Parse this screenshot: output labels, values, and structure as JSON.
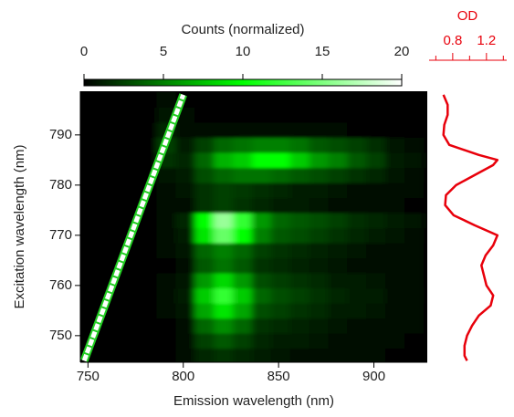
{
  "chart_data": [
    {
      "type": "heatmap",
      "xlabel": "Emission wavelength (nm)",
      "ylabel": "Excitation wavelength (nm)",
      "xlim": [
        746,
        928
      ],
      "ylim": [
        744.7,
        798.7
      ],
      "xticks": [
        750,
        800,
        850,
        900
      ],
      "yticks": [
        750,
        760,
        770,
        780,
        790
      ],
      "x": [
        751,
        761,
        771,
        781,
        791,
        801,
        811,
        821,
        831,
        841,
        851,
        861,
        871,
        881,
        891,
        901,
        911,
        921
      ],
      "y": [
        746,
        749,
        752,
        755,
        758,
        761,
        764,
        767,
        770,
        773,
        776,
        779,
        782,
        785,
        788,
        791,
        794,
        797
      ],
      "z": [
        [
          0,
          0,
          0,
          0,
          0,
          0.3,
          1.5,
          2,
          1.5,
          1,
          0.8,
          0.6,
          0.5,
          0.4,
          0.3,
          0.3,
          0.2,
          0.2
        ],
        [
          0,
          0,
          0,
          0,
          0,
          0.4,
          2.5,
          3.5,
          2.5,
          1.5,
          1.2,
          1,
          0.8,
          0.6,
          0.5,
          0.4,
          0.3,
          0.2
        ],
        [
          0,
          0,
          0,
          0,
          0.2,
          0.5,
          4,
          5.5,
          4,
          2,
          1.6,
          1.3,
          1,
          0.8,
          0.6,
          0.5,
          0.3,
          0.3
        ],
        [
          0,
          0,
          0,
          0,
          0.3,
          0.8,
          6.5,
          9,
          6.5,
          3,
          2.5,
          2,
          1.6,
          1.2,
          1,
          0.8,
          0.5,
          0.4
        ],
        [
          0,
          0,
          0,
          0,
          0.3,
          1,
          8,
          12,
          8,
          4,
          3,
          2.5,
          2,
          1.5,
          1.2,
          1,
          0.6,
          0.5
        ],
        [
          0,
          0,
          0,
          0,
          0.3,
          0.8,
          6,
          8.5,
          6,
          3,
          2.4,
          2,
          1.6,
          1.2,
          1,
          0.8,
          0.5,
          0.4
        ],
        [
          0,
          0,
          0,
          0,
          0.2,
          0.6,
          3.5,
          4.5,
          3.5,
          2,
          1.6,
          1.3,
          1,
          0.8,
          0.6,
          0.5,
          0.3,
          0.3
        ],
        [
          0,
          0,
          0,
          0,
          0.3,
          0.8,
          4,
          5,
          4,
          2.5,
          2,
          1.6,
          1.3,
          1,
          0.8,
          0.6,
          0.4,
          0.3
        ],
        [
          0,
          0,
          0,
          0.2,
          0.4,
          1.2,
          9,
          14,
          10,
          5,
          3.5,
          3,
          2.5,
          2,
          1.5,
          1.2,
          0.8,
          0.6
        ],
        [
          0,
          0,
          0,
          0.2,
          0.5,
          1.5,
          10,
          16,
          12,
          6,
          4,
          3.5,
          3,
          2.5,
          1.8,
          1.5,
          1,
          0.8
        ],
        [
          0,
          0,
          0,
          0,
          0.3,
          0.6,
          2,
          2.5,
          2,
          1.5,
          1.2,
          1,
          0.8,
          0.6,
          0.5,
          0.4,
          0.3,
          0.2
        ],
        [
          0,
          0,
          0,
          0,
          0.4,
          0.7,
          2,
          2.5,
          2.2,
          1.8,
          1.5,
          1.2,
          1,
          0.8,
          0.6,
          0.5,
          0.3,
          0.3
        ],
        [
          0,
          0,
          0,
          0,
          0.8,
          1,
          3,
          4,
          4.5,
          4.5,
          4,
          3.5,
          3,
          2.5,
          2,
          1.5,
          0.8,
          0.6
        ],
        [
          0,
          0,
          0,
          0,
          2,
          1.5,
          4,
          7,
          8,
          10,
          10,
          8,
          6,
          5,
          3.5,
          2.5,
          1,
          0.8
        ],
        [
          0,
          0,
          0,
          0,
          2.5,
          1,
          2.5,
          4,
          4.5,
          5,
          5,
          4.5,
          3.5,
          3,
          2.5,
          1.8,
          0.8,
          0.6
        ],
        [
          0,
          0,
          0,
          0,
          1.5,
          0.5,
          0.3,
          0.4,
          0.4,
          0.4,
          0.4,
          0.3,
          0.3,
          0.3,
          0.2,
          0.2,
          0.2,
          0.2
        ],
        [
          0,
          0,
          0,
          0,
          0.8,
          0.3,
          0.2,
          0.2,
          0.2,
          0.2,
          0.2,
          0.2,
          0.2,
          0.2,
          0.2,
          0.1,
          0.1,
          0.1
        ],
        [
          0,
          0,
          0,
          0,
          0.5,
          0.2,
          0.1,
          0.1,
          0.1,
          0.1,
          0.1,
          0.1,
          0.1,
          0.1,
          0.1,
          0.1,
          0.1,
          0.1
        ]
      ],
      "series": [
        {
          "color": "#ffffff",
          "x": [
            748,
            800
          ],
          "y": [
            745,
            798
          ]
        }
      ],
      "colorbar": {
        "label": "Counts (normalized)",
        "lim": [
          0,
          20
        ],
        "ticks": [
          0,
          5,
          10,
          15,
          20
        ],
        "colors": [
          "#000000",
          "#00ff00",
          "#ffffff"
        ]
      }
    },
    {
      "type": "line",
      "xlabel": "OD",
      "xlim": [
        0.52,
        1.44
      ],
      "xticks": [
        0.8,
        1.2
      ],
      "minor_xticks": [
        0.6,
        1.0,
        1.4
      ],
      "ylim": [
        744.7,
        798.7
      ],
      "color": "#e8000b",
      "y": [
        798,
        796,
        794,
        792,
        790,
        788,
        786,
        785,
        784,
        782,
        780,
        778,
        776,
        774,
        772,
        770,
        768,
        766,
        764,
        762,
        760,
        758,
        756,
        754,
        752,
        750,
        748,
        746,
        745
      ],
      "x": [
        0.69,
        0.74,
        0.74,
        0.7,
        0.69,
        0.76,
        1.11,
        1.33,
        1.28,
        1.06,
        0.84,
        0.72,
        0.71,
        0.81,
        1.06,
        1.33,
        1.28,
        1.19,
        1.14,
        1.17,
        1.2,
        1.28,
        1.25,
        1.11,
        1.03,
        0.97,
        0.94,
        0.94,
        0.97
      ]
    }
  ]
}
